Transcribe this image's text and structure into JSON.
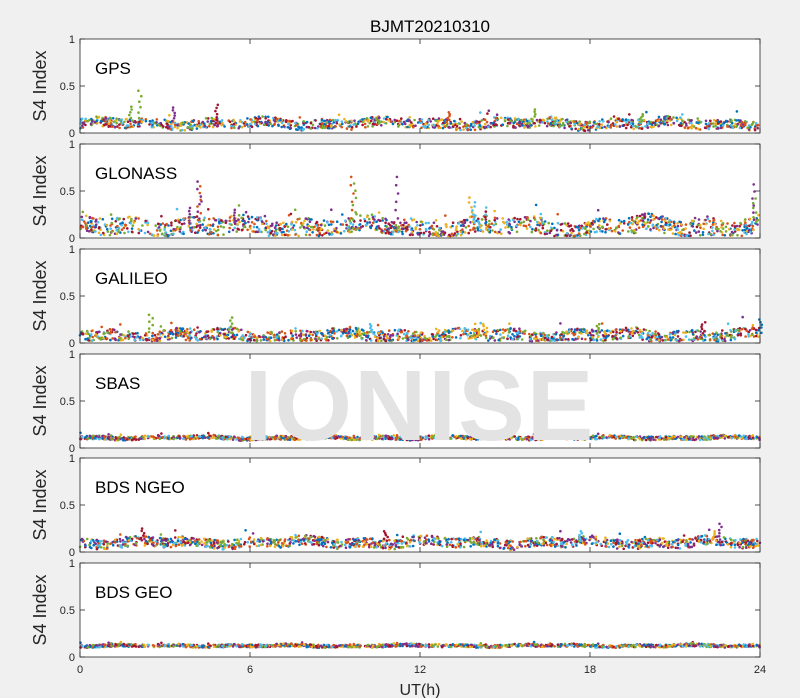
{
  "chart_data": {
    "type": "scatter",
    "title": "BJMT20210310",
    "xlabel": "UT(h)",
    "ylabel": "S4 Index",
    "xlim": [
      0,
      24
    ],
    "ylim": [
      0,
      1
    ],
    "x_ticks": [
      0,
      6,
      12,
      18,
      24
    ],
    "x_tick_labels": [
      "0",
      "6",
      "12",
      "18",
      "24"
    ],
    "y_ticks": [
      0,
      0.5,
      1
    ],
    "y_tick_labels": [
      "0",
      "0.5",
      "1"
    ],
    "grid": false,
    "watermark": "IONISE",
    "series_colors": [
      "#0072bd",
      "#d95319",
      "#edb120",
      "#7e2f8e",
      "#77ac30",
      "#4dbeee",
      "#a2142f"
    ],
    "panels": [
      {
        "label": "GPS",
        "baseline": 0.1,
        "spread": 0.05,
        "spikes": [
          [
            2.1,
            0.45
          ],
          [
            1.8,
            0.28
          ],
          [
            4.8,
            0.3
          ],
          [
            3.3,
            0.27
          ],
          [
            13.0,
            0.22
          ],
          [
            16.0,
            0.25
          ],
          [
            19.8,
            0.2
          ]
        ]
      },
      {
        "label": "GLONASS",
        "baseline": 0.12,
        "spread": 0.09,
        "spikes": [
          [
            4.2,
            0.6
          ],
          [
            4.2,
            0.55
          ],
          [
            3.9,
            0.32
          ],
          [
            9.6,
            0.65
          ],
          [
            9.7,
            0.58
          ],
          [
            11.2,
            0.65
          ],
          [
            13.8,
            0.43
          ],
          [
            13.9,
            0.38
          ],
          [
            23.8,
            0.57
          ],
          [
            23.8,
            0.42
          ],
          [
            5.5,
            0.3
          ]
        ]
      },
      {
        "label": "GALILEO",
        "baseline": 0.08,
        "spread": 0.06,
        "spikes": [
          [
            2.5,
            0.3
          ],
          [
            5.3,
            0.27
          ],
          [
            10.3,
            0.2
          ],
          [
            14.3,
            0.2
          ],
          [
            18.3,
            0.2
          ],
          [
            22.0,
            0.22
          ],
          [
            24.0,
            0.25
          ]
        ]
      },
      {
        "label": "SBAS",
        "baseline": 0.11,
        "spread": 0.02,
        "spikes": []
      },
      {
        "label": "BDS NGEO",
        "baseline": 0.1,
        "spread": 0.05,
        "spikes": [
          [
            2.2,
            0.25
          ],
          [
            10.8,
            0.22
          ],
          [
            17.7,
            0.22
          ],
          [
            22.6,
            0.3
          ],
          [
            22.4,
            0.22
          ]
        ]
      },
      {
        "label": "BDS GEO",
        "baseline": 0.12,
        "spread": 0.015,
        "spikes": []
      }
    ]
  }
}
